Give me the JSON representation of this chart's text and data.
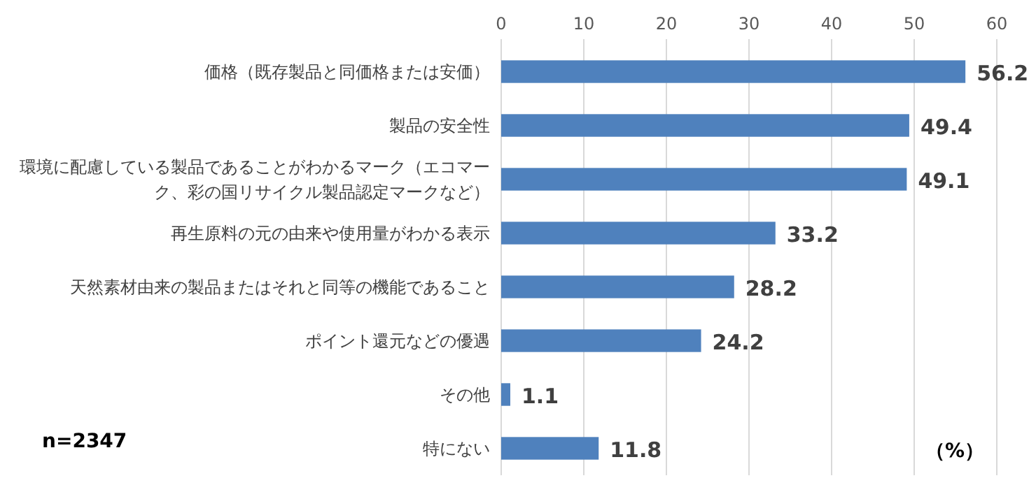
{
  "chart_data": {
    "type": "bar",
    "orientation": "horizontal",
    "categories": [
      "価格（既存製品と同価格または安価）",
      "製品の安全性",
      "環境に配慮している製品であることがわかるマーク（エコマーク、彩の国リサイクル製品認定マークなど）",
      "再生原料の元の由来や使用量がわかる表示",
      "天然素材由来の製品またはそれと同等の機能であること",
      "ポイント還元などの優遇",
      "その他",
      "特にない"
    ],
    "values": [
      56.2,
      49.4,
      49.1,
      33.2,
      28.2,
      24.2,
      1.1,
      11.8
    ],
    "color": "#4f81bd",
    "xlim": [
      0,
      60
    ],
    "xticks": [
      0,
      10,
      20,
      30,
      40,
      50,
      60
    ],
    "grid": "x",
    "data_labels": true,
    "xlabel": "（%）",
    "annotations": [
      "n=2347"
    ]
  }
}
